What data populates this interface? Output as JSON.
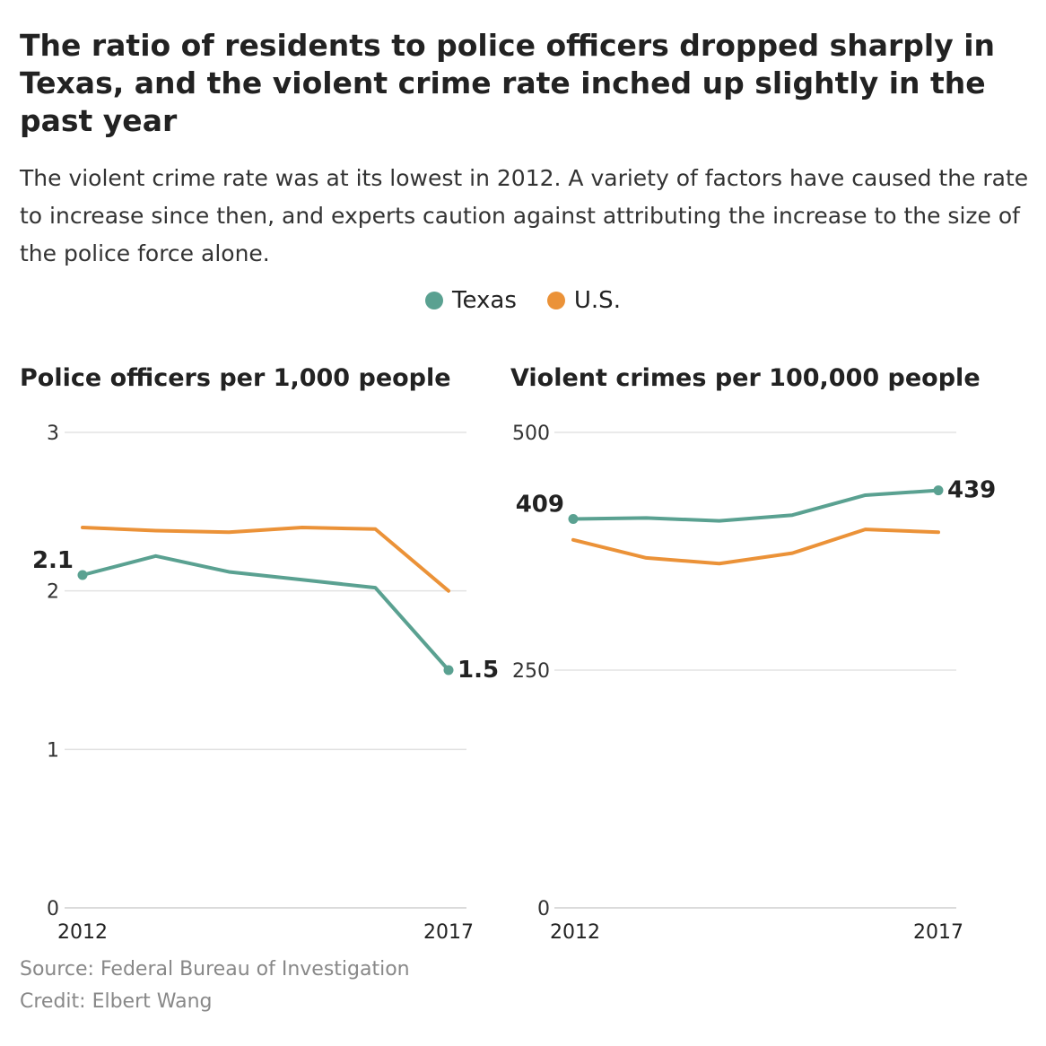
{
  "header": {
    "title": "The ratio of residents to police officers dropped sharply in Texas, and the violent crime rate inched up slightly in the past year",
    "subtitle": "The violent crime rate was at its lowest in 2012. A variety of factors have caused the rate to increase since then, and experts caution against attributing the increase to the size of the police force alone."
  },
  "legend": [
    {
      "label": "Texas",
      "color": "#5aa191"
    },
    {
      "label": "U.S.",
      "color": "#eb9238"
    }
  ],
  "chart_data": [
    {
      "type": "line",
      "title": "Police officers per 1,000 people",
      "x": [
        2012,
        2013,
        2014,
        2015,
        2016,
        2017
      ],
      "x_tick_labels": [
        "2012",
        "2017"
      ],
      "ylim": [
        0,
        3
      ],
      "y_ticks": [
        0,
        1,
        2,
        3
      ],
      "grid": true,
      "series": [
        {
          "name": "Texas",
          "color": "#5aa191",
          "values": [
            2.1,
            2.22,
            2.12,
            2.07,
            2.02,
            1.5
          ],
          "endpoint_labels": {
            "first": "2.1",
            "last": "1.5"
          }
        },
        {
          "name": "U.S.",
          "color": "#eb9238",
          "values": [
            2.4,
            2.38,
            2.37,
            2.4,
            2.39,
            2.0
          ]
        }
      ]
    },
    {
      "type": "line",
      "title": "Violent crimes per 100,000 people",
      "x": [
        2012,
        2013,
        2014,
        2015,
        2016,
        2017
      ],
      "x_tick_labels": [
        "2012",
        "2017"
      ],
      "ylim": [
        0,
        500
      ],
      "y_ticks": [
        0,
        250,
        500
      ],
      "grid": true,
      "series": [
        {
          "name": "Texas",
          "color": "#5aa191",
          "values": [
            409,
            410,
            407,
            413,
            434,
            439
          ],
          "endpoint_labels": {
            "first": "409",
            "last": "439"
          }
        },
        {
          "name": "U.S.",
          "color": "#eb9238",
          "values": [
            387,
            368,
            362,
            373,
            398,
            395
          ]
        }
      ]
    }
  ],
  "footer": {
    "source": "Source: Federal Bureau of Investigation",
    "credit": "Credit: Elbert Wang"
  }
}
